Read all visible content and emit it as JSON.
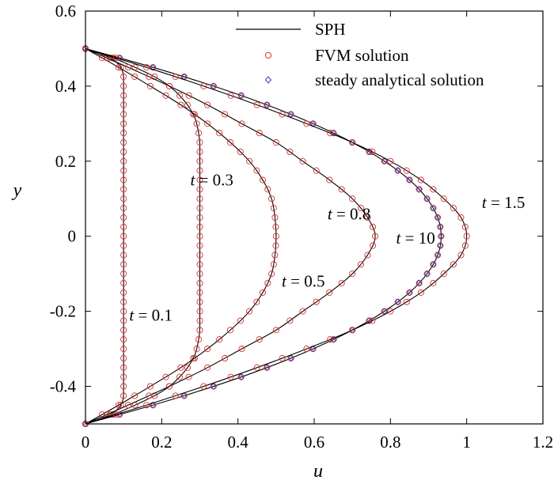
{
  "chart_data": {
    "type": "line",
    "title": "",
    "xlabel": "u",
    "ylabel": "y",
    "xlim": [
      0,
      1.2
    ],
    "ylim": [
      -0.5,
      0.6
    ],
    "xticks": [
      0,
      0.2,
      0.4,
      0.6,
      0.8,
      1,
      1.2
    ],
    "yticks": [
      -0.4,
      -0.2,
      0,
      0.2,
      0.4,
      0.6
    ],
    "xtick_labels": [
      "0",
      "0.2",
      "0.4",
      "0.6",
      "0.8",
      "1",
      "1.2"
    ],
    "ytick_labels": [
      "-0.4",
      "-0.2",
      "0",
      "0.2",
      "0.4",
      "0.6"
    ],
    "grid": false,
    "legend_position": "top-right",
    "legend": [
      {
        "label": "SPH",
        "marker": "line",
        "color": "#000000"
      },
      {
        "label": "FVM solution",
        "marker": "circle",
        "color": "#d9302c"
      },
      {
        "label": "steady analytical solution",
        "marker": "diamond",
        "color": "#3b3bb8"
      }
    ],
    "series": [
      {
        "time_label": "t = 0.1",
        "y": [
          -0.5,
          -0.48,
          -0.46,
          -0.44,
          -0.42,
          -0.4,
          -0.3,
          -0.2,
          -0.1,
          0,
          0.1,
          0.2,
          0.3,
          0.4,
          0.42,
          0.44,
          0.46,
          0.48,
          0.5
        ],
        "u": [
          0,
          0.055,
          0.085,
          0.097,
          0.1,
          0.1,
          0.1,
          0.1,
          0.1,
          0.1,
          0.1,
          0.1,
          0.1,
          0.1,
          0.1,
          0.097,
          0.085,
          0.055,
          0
        ]
      },
      {
        "time_label": "t = 0.3",
        "y": [
          -0.5,
          -0.48,
          -0.45,
          -0.42,
          -0.4,
          -0.36,
          -0.32,
          -0.28,
          -0.24,
          -0.2,
          -0.1,
          0,
          0.1,
          0.2,
          0.24,
          0.28,
          0.32,
          0.36,
          0.4,
          0.42,
          0.45,
          0.48,
          0.5
        ],
        "u": [
          0,
          0.06,
          0.13,
          0.19,
          0.22,
          0.26,
          0.285,
          0.296,
          0.3,
          0.3,
          0.3,
          0.3,
          0.3,
          0.3,
          0.3,
          0.296,
          0.285,
          0.26,
          0.22,
          0.19,
          0.13,
          0.06,
          0
        ]
      },
      {
        "time_label": "t = 0.5",
        "y": [
          -0.5,
          -0.45,
          -0.4,
          -0.35,
          -0.3,
          -0.25,
          -0.2,
          -0.15,
          -0.1,
          -0.05,
          0,
          0.05,
          0.1,
          0.15,
          0.2,
          0.25,
          0.3,
          0.35,
          0.4,
          0.45,
          0.5
        ],
        "u": [
          0,
          0.087,
          0.17,
          0.25,
          0.32,
          0.38,
          0.43,
          0.465,
          0.488,
          0.497,
          0.5,
          0.497,
          0.488,
          0.465,
          0.43,
          0.38,
          0.32,
          0.25,
          0.17,
          0.087,
          0
        ]
      },
      {
        "time_label": "t = 0.8",
        "y": [
          -0.5,
          -0.45,
          -0.4,
          -0.35,
          -0.3,
          -0.25,
          -0.2,
          -0.15,
          -0.1,
          -0.05,
          0,
          0.05,
          0.1,
          0.15,
          0.2,
          0.25,
          0.3,
          0.35,
          0.4,
          0.45,
          0.5
        ],
        "u": [
          0,
          0.112,
          0.22,
          0.32,
          0.41,
          0.5,
          0.57,
          0.64,
          0.7,
          0.74,
          0.76,
          0.74,
          0.7,
          0.64,
          0.57,
          0.5,
          0.41,
          0.32,
          0.22,
          0.112,
          0
        ]
      },
      {
        "time_label": "t = 10",
        "y": [
          -0.5,
          -0.45,
          -0.4,
          -0.35,
          -0.3,
          -0.25,
          -0.2,
          -0.15,
          -0.1,
          -0.05,
          0,
          0.05,
          0.1,
          0.15,
          0.2,
          0.25,
          0.3,
          0.35,
          0.4,
          0.45,
          0.5
        ],
        "u": [
          0,
          0.177,
          0.336,
          0.476,
          0.597,
          0.7,
          0.784,
          0.85,
          0.896,
          0.924,
          0.933,
          0.924,
          0.896,
          0.85,
          0.784,
          0.7,
          0.597,
          0.476,
          0.336,
          0.177,
          0
        ]
      },
      {
        "time_label": "t = 1.5",
        "y": [
          -0.5,
          -0.45,
          -0.4,
          -0.35,
          -0.3,
          -0.25,
          -0.2,
          -0.15,
          -0.1,
          -0.05,
          0,
          0.05,
          0.1,
          0.15,
          0.2,
          0.25,
          0.3,
          0.35,
          0.4,
          0.45,
          0.5
        ],
        "u": [
          0,
          0.16,
          0.31,
          0.45,
          0.58,
          0.7,
          0.8,
          0.88,
          0.94,
          0.985,
          1.0,
          0.985,
          0.94,
          0.88,
          0.8,
          0.7,
          0.58,
          0.45,
          0.31,
          0.16,
          0
        ]
      }
    ],
    "annotations": [
      {
        "text": "t = 0.1",
        "x": 0.115,
        "y": -0.21
      },
      {
        "text": "t = 0.3",
        "x": 0.275,
        "y": 0.15
      },
      {
        "text": "t = 0.5",
        "x": 0.515,
        "y": -0.12
      },
      {
        "text": "t = 0.8",
        "x": 0.635,
        "y": 0.06
      },
      {
        "text": "t = 10",
        "x": 0.815,
        "y": -0.005
      },
      {
        "text": "t = 1.5",
        "x": 1.04,
        "y": 0.09
      }
    ]
  }
}
